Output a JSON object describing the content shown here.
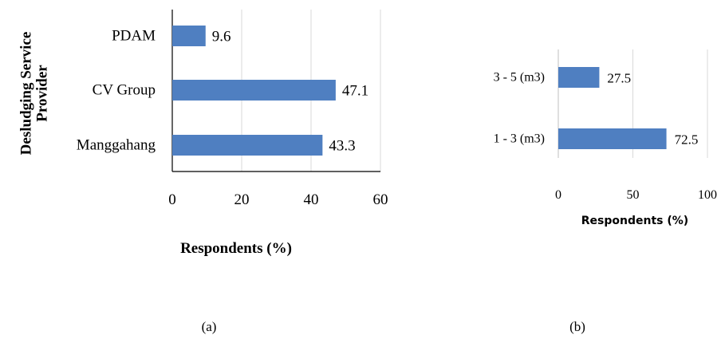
{
  "chart_data": [
    {
      "type": "bar",
      "orientation": "horizontal",
      "categories": [
        "PDAM",
        "CV Group",
        "Manggahang"
      ],
      "values": [
        9.6,
        47.1,
        43.3
      ],
      "data_labels": [
        "9.6",
        "47.1",
        "43.3"
      ],
      "xlabel": "Respondents (%)",
      "ylabel": "Desludging Service Provider",
      "xlim": [
        0,
        60
      ],
      "xticks": [
        "0",
        "20",
        "40",
        "60"
      ],
      "grid": true,
      "color": "#4f7fc1",
      "caption": "(a)"
    },
    {
      "type": "bar",
      "orientation": "horizontal",
      "categories": [
        "3 - 5 (m3)",
        "1 - 3 (m3)"
      ],
      "values": [
        27.5,
        72.5
      ],
      "data_labels": [
        "27.5",
        "72.5"
      ],
      "xlabel": "Respondents (%)",
      "ylabel": "",
      "xlim": [
        0,
        100
      ],
      "xticks": [
        "0",
        "50",
        "100"
      ],
      "grid": true,
      "color": "#4f7fc1",
      "caption": "(b)"
    }
  ]
}
